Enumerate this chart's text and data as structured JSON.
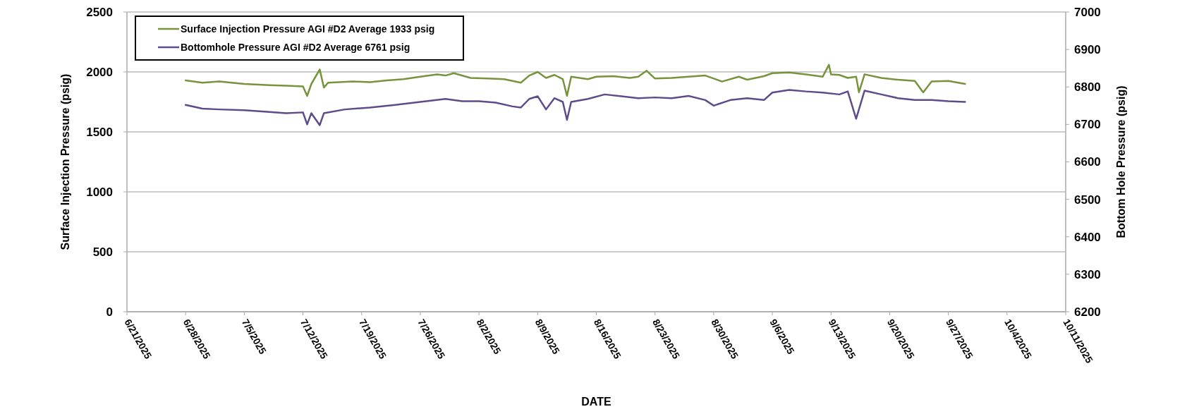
{
  "chart_data": {
    "type": "line",
    "xlabel": "DATE",
    "ylabel": "Surface Injection Pressure (psig)",
    "y2label": "Bottom Hole Pressure (psig)",
    "xlim": [
      "2025-06-21",
      "2025-10-11"
    ],
    "xticks": [
      {
        "value": "2025-06-21",
        "label": "6/21/2025"
      },
      {
        "value": "2025-06-28",
        "label": "6/28/2025"
      },
      {
        "value": "2025-07-05",
        "label": "7/5/2025"
      },
      {
        "value": "2025-07-12",
        "label": "7/12/2025"
      },
      {
        "value": "2025-07-19",
        "label": "7/19/2025"
      },
      {
        "value": "2025-07-26",
        "label": "7/26/2025"
      },
      {
        "value": "2025-08-02",
        "label": "8/2/2025"
      },
      {
        "value": "2025-08-09",
        "label": "8/9/2025"
      },
      {
        "value": "2025-08-16",
        "label": "8/16/2025"
      },
      {
        "value": "2025-08-23",
        "label": "8/23/2025"
      },
      {
        "value": "2025-08-30",
        "label": "8/30/2025"
      },
      {
        "value": "2025-09-06",
        "label": "9/6/2025"
      },
      {
        "value": "2025-09-13",
        "label": "9/13/2025"
      },
      {
        "value": "2025-09-20",
        "label": "9/20/2025"
      },
      {
        "value": "2025-09-27",
        "label": "9/27/2025"
      },
      {
        "value": "2025-10-04",
        "label": "10/4/2025"
      },
      {
        "value": "2025-10-11",
        "label": "10/11/2025"
      }
    ],
    "ylim": [
      0,
      2500
    ],
    "yticks": [
      0,
      500,
      1000,
      1500,
      2000,
      2500
    ],
    "y2lim": [
      6200,
      7000
    ],
    "y2ticks": [
      6200,
      6300,
      6400,
      6500,
      6600,
      6700,
      6800,
      6900,
      7000
    ],
    "grid": "y",
    "legend": "top left",
    "marker": "none",
    "line_style": "solid",
    "series": [
      {
        "name": "Surface Injection Pressure AGI #D2 Average 1933 psig",
        "color": "#77933c",
        "x": [
          "2025-06-28",
          "2025-06-30",
          "2025-07-02",
          "2025-07-05",
          "2025-07-08",
          "2025-07-10",
          "2025-07-12",
          "2025-07-12T12:00",
          "2025-07-13",
          "2025-07-14",
          "2025-07-14T12:00",
          "2025-07-15",
          "2025-07-18",
          "2025-07-20",
          "2025-07-22",
          "2025-07-24",
          "2025-07-26",
          "2025-07-28",
          "2025-07-29",
          "2025-07-30",
          "2025-08-01",
          "2025-08-03",
          "2025-08-05",
          "2025-08-07",
          "2025-08-08",
          "2025-08-09",
          "2025-08-10",
          "2025-08-11",
          "2025-08-12",
          "2025-08-12T12:00",
          "2025-08-13",
          "2025-08-15",
          "2025-08-16",
          "2025-08-18",
          "2025-08-20",
          "2025-08-21",
          "2025-08-22",
          "2025-08-23",
          "2025-08-25",
          "2025-08-27",
          "2025-08-29",
          "2025-08-31",
          "2025-09-02",
          "2025-09-03",
          "2025-09-05",
          "2025-09-06",
          "2025-09-08",
          "2025-09-10",
          "2025-09-12",
          "2025-09-12T18:00",
          "2025-09-13",
          "2025-09-14",
          "2025-09-15",
          "2025-09-16",
          "2025-09-16T08:00",
          "2025-09-17",
          "2025-09-19",
          "2025-09-21",
          "2025-09-23",
          "2025-09-24",
          "2025-09-25",
          "2025-09-27",
          "2025-09-29"
        ],
        "values": [
          1930,
          1910,
          1920,
          1900,
          1890,
          1885,
          1880,
          1800,
          1900,
          2020,
          1870,
          1910,
          1920,
          1915,
          1930,
          1940,
          1960,
          1980,
          1970,
          1990,
          1950,
          1945,
          1940,
          1910,
          1970,
          2000,
          1950,
          1975,
          1940,
          1800,
          1960,
          1940,
          1960,
          1965,
          1950,
          1960,
          2010,
          1945,
          1950,
          1960,
          1970,
          1920,
          1960,
          1935,
          1965,
          1990,
          1995,
          1980,
          1960,
          2060,
          1980,
          1975,
          1950,
          1960,
          1830,
          1980,
          1950,
          1935,
          1925,
          1830,
          1920,
          1925,
          1900
        ]
      },
      {
        "name": "Bottomhole Pressure AGI #D2 Average 6761 psig",
        "color": "#5f4b8b",
        "axis": "y2",
        "x": [
          "2025-06-28",
          "2025-06-30",
          "2025-07-02",
          "2025-07-05",
          "2025-07-08",
          "2025-07-10",
          "2025-07-12",
          "2025-07-12T12:00",
          "2025-07-13",
          "2025-07-14",
          "2025-07-14T12:00",
          "2025-07-17",
          "2025-07-20",
          "2025-07-23",
          "2025-07-26",
          "2025-07-29",
          "2025-07-31",
          "2025-08-02",
          "2025-08-04",
          "2025-08-06",
          "2025-08-07",
          "2025-08-08",
          "2025-08-09",
          "2025-08-10",
          "2025-08-11",
          "2025-08-12",
          "2025-08-12T12:00",
          "2025-08-13",
          "2025-08-15",
          "2025-08-17",
          "2025-08-19",
          "2025-08-21",
          "2025-08-23",
          "2025-08-25",
          "2025-08-27",
          "2025-08-29",
          "2025-08-30",
          "2025-09-01",
          "2025-09-03",
          "2025-09-05",
          "2025-09-06",
          "2025-09-08",
          "2025-09-10",
          "2025-09-12",
          "2025-09-14",
          "2025-09-15",
          "2025-09-16",
          "2025-09-17",
          "2025-09-19",
          "2025-09-21",
          "2025-09-23",
          "2025-09-25",
          "2025-09-27",
          "2025-09-29"
        ],
        "values": [
          6752,
          6742,
          6740,
          6738,
          6733,
          6730,
          6732,
          6700,
          6730,
          6698,
          6730,
          6740,
          6745,
          6752,
          6760,
          6768,
          6762,
          6762,
          6758,
          6748,
          6745,
          6768,
          6775,
          6740,
          6770,
          6760,
          6712,
          6760,
          6768,
          6780,
          6775,
          6770,
          6772,
          6770,
          6776,
          6765,
          6750,
          6765,
          6770,
          6765,
          6785,
          6792,
          6788,
          6785,
          6780,
          6788,
          6715,
          6790,
          6780,
          6770,
          6765,
          6765,
          6762,
          6760
        ]
      }
    ]
  }
}
